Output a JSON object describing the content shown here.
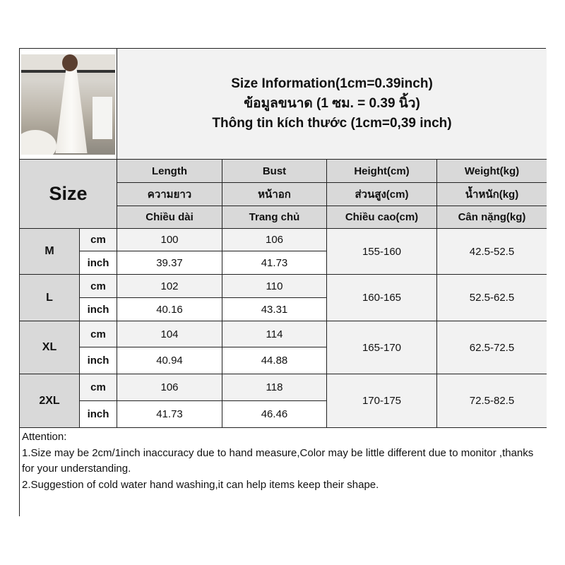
{
  "header": {
    "title_lines": [
      "Size Information(1cm=0.39inch)",
      "ข้อมูลขนาด (1 ซม. = 0.39 นิ้ว)",
      "Thông tin kích thước (1cm=0,39 inch)"
    ]
  },
  "columns": {
    "size_label": "Size",
    "length": [
      "Length",
      "ความยาว",
      "Chiều dài"
    ],
    "bust": [
      "Bust",
      "หน้าอก",
      "Trang chủ"
    ],
    "height": [
      "Height(cm)",
      "ส่วนสูง(cm)",
      "Chiều cao(cm)"
    ],
    "weight": [
      "Weight(kg)",
      "น้ำหนัก(kg)",
      "Cân nặng(kg)"
    ]
  },
  "units": {
    "cm": "cm",
    "inch": "inch"
  },
  "sizes": [
    {
      "size": "M",
      "length_cm": "100",
      "length_inch": "39.37",
      "bust_cm": "106",
      "bust_inch": "41.73",
      "height": "155-160",
      "weight": "42.5-52.5"
    },
    {
      "size": "L",
      "length_cm": "102",
      "length_inch": "40.16",
      "bust_cm": "110",
      "bust_inch": "43.31",
      "height": "160-165",
      "weight": "52.5-62.5"
    },
    {
      "size": "XL",
      "length_cm": "104",
      "length_inch": "40.94",
      "bust_cm": "114",
      "bust_inch": "44.88",
      "height": "165-170",
      "weight": "62.5-72.5"
    },
    {
      "size": "2XL",
      "length_cm": "106",
      "length_inch": "41.73",
      "bust_cm": "118",
      "bust_inch": "46.46",
      "height": "170-175",
      "weight": "72.5-82.5"
    }
  ],
  "attention": {
    "heading": "Attention:",
    "line1": "1.Size may be 2cm/1inch inaccuracy due to hand measure,Color may be little different due to monitor ,thanks for your understanding.",
    "line2": "2.Suggestion of cold water hand washing,it can help items keep their shape."
  },
  "colors": {
    "header_gray": "#d9d9d9",
    "light_gray": "#f2f2f2",
    "border": "#222222"
  }
}
